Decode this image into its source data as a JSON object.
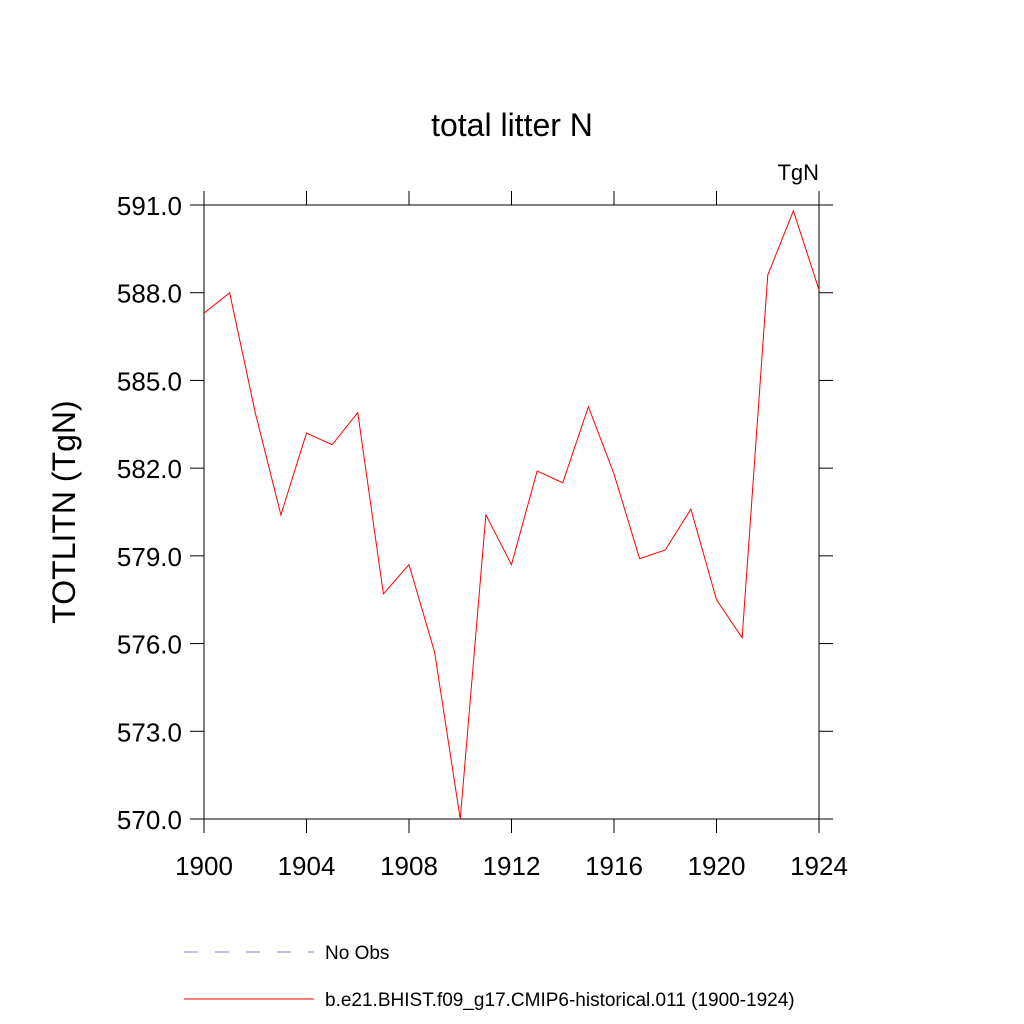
{
  "chart_data": {
    "type": "line",
    "title": "total litter N",
    "unit_label": "TgN",
    "y_label": "TOTLITN  (TgN)",
    "x": [
      1900,
      1901,
      1902,
      1903,
      1904,
      1905,
      1906,
      1907,
      1908,
      1909,
      1910,
      1911,
      1912,
      1913,
      1914,
      1915,
      1916,
      1917,
      1918,
      1919,
      1920,
      1921,
      1922,
      1923,
      1924
    ],
    "series": [
      {
        "name": "No Obs",
        "color": "#8080c0",
        "dashed": true,
        "values": [
          null,
          null,
          null,
          null,
          null,
          null,
          null,
          null,
          null,
          null,
          null,
          null,
          null,
          null,
          null,
          null,
          null,
          null,
          null,
          null,
          null,
          null,
          null,
          null,
          null
        ]
      },
      {
        "name": "b.e21.BHIST.f09_g17.CMIP6-historical.011 (1900-1924)",
        "color": "#ff0000",
        "dashed": false,
        "values": [
          587.3,
          588.0,
          583.9,
          580.4,
          583.2,
          582.8,
          583.9,
          577.7,
          578.7,
          575.7,
          570.0,
          580.4,
          578.7,
          581.9,
          581.5,
          584.1,
          581.8,
          578.9,
          579.2,
          580.6,
          577.5,
          576.2,
          588.6,
          590.8,
          588.1
        ]
      }
    ],
    "xlim": [
      1900,
      1924
    ],
    "xticks": [
      1900,
      1904,
      1908,
      1912,
      1916,
      1920,
      1924
    ],
    "ylim": [
      570,
      591
    ],
    "yticks": [
      {
        "value": 570,
        "label": "570.0"
      },
      {
        "value": 573,
        "label": "573.0"
      },
      {
        "value": 576,
        "label": "576.0"
      },
      {
        "value": 579,
        "label": "579.0"
      },
      {
        "value": 582,
        "label": "582.0"
      },
      {
        "value": 585,
        "label": "585.0"
      },
      {
        "value": 588,
        "label": "588.0"
      },
      {
        "value": 591,
        "label": "591.0"
      }
    ]
  }
}
